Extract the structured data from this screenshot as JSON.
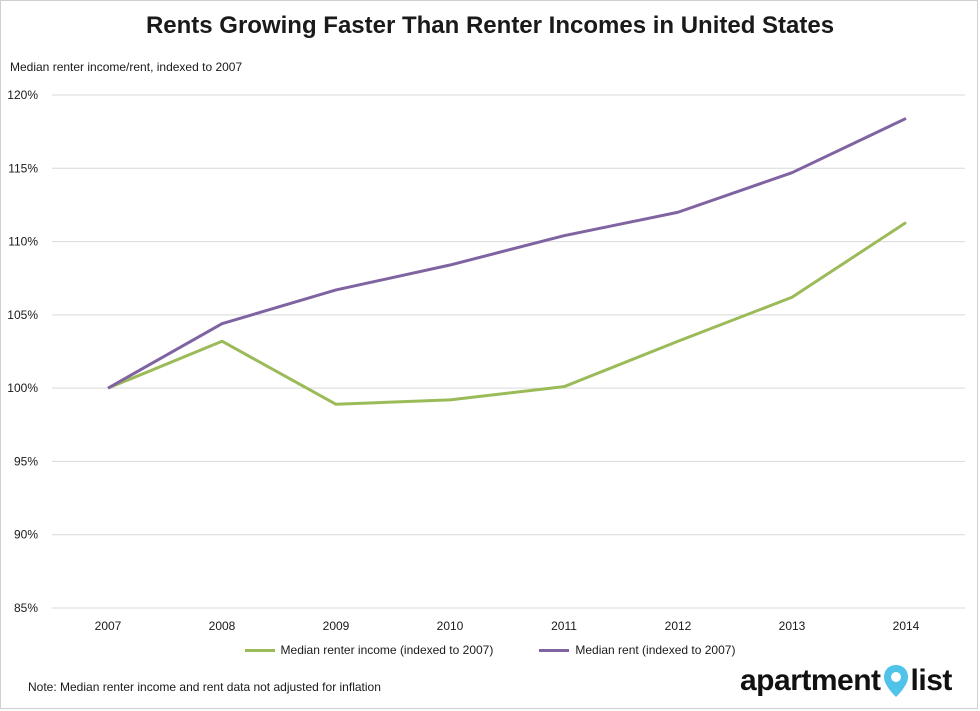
{
  "chart_data": {
    "type": "line",
    "title": "Rents Growing Faster Than Renter Incomes in United States",
    "ylabel": "Median renter income/rent, indexed to 2007",
    "xlabel": "",
    "x": [
      "2007",
      "2008",
      "2009",
      "2010",
      "2011",
      "2012",
      "2013",
      "2014"
    ],
    "ylim": [
      85,
      120
    ],
    "yticks": [
      85,
      90,
      95,
      100,
      105,
      110,
      115,
      120
    ],
    "ytick_labels": [
      "85%",
      "90%",
      "95%",
      "100%",
      "105%",
      "110%",
      "115%",
      "120%"
    ],
    "grid": "horizontal",
    "legend_position": "bottom",
    "series": [
      {
        "name": "Median renter income (indexed to 2007)",
        "color": "#9bbb59",
        "values": [
          100.0,
          103.2,
          98.9,
          99.2,
          100.1,
          103.2,
          106.2,
          111.3
        ]
      },
      {
        "name": "Median rent (indexed to 2007)",
        "color": "#8064a2",
        "values": [
          100.0,
          104.4,
          106.7,
          108.4,
          110.4,
          112.0,
          114.7,
          118.4
        ]
      }
    ]
  },
  "note": "Note: Median renter income and rent data not adjusted for inflation",
  "logo": {
    "word1": "apartment",
    "word2": "list",
    "icon": "map-pin-icon",
    "pin_color": "#4fc3e8"
  }
}
